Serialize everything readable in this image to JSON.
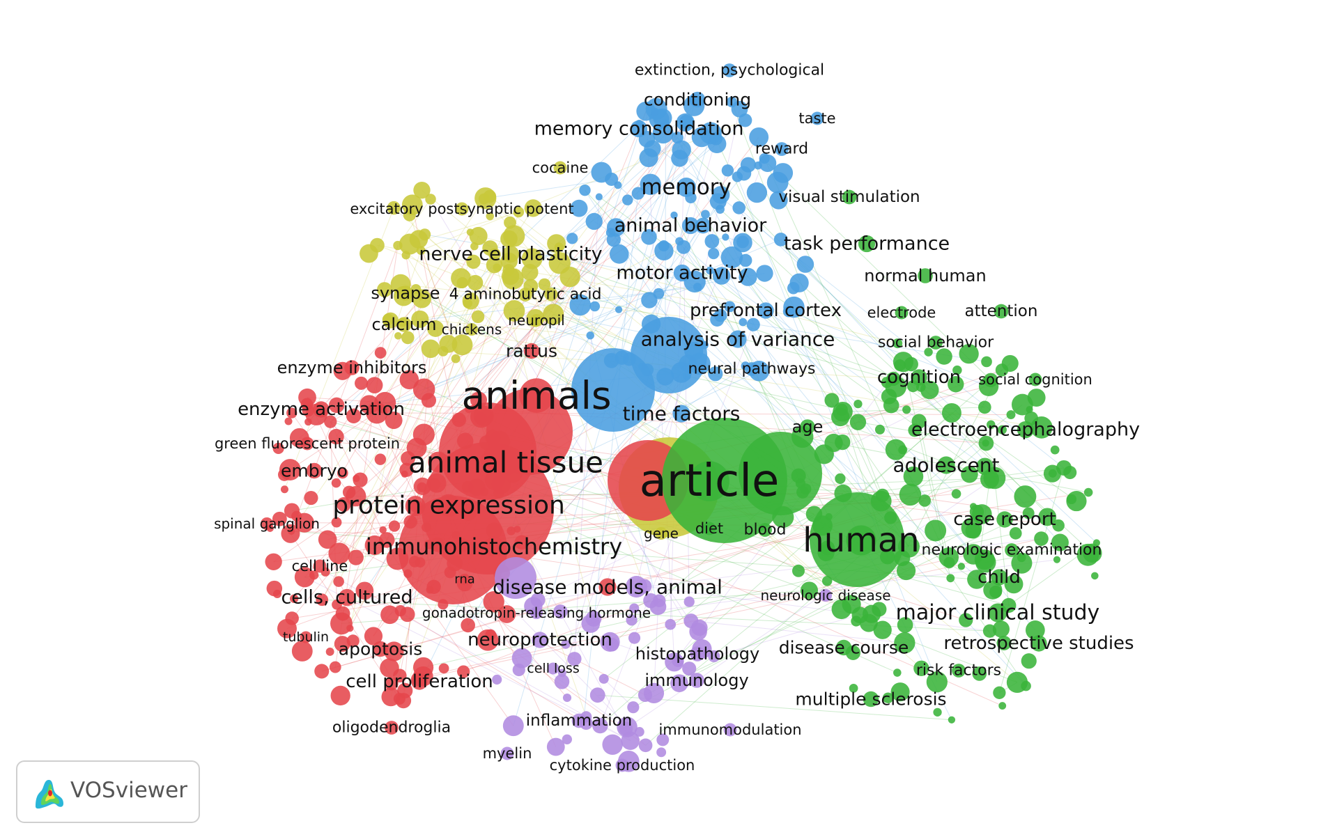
{
  "app": {
    "logo_text": "VOSviewer"
  },
  "clusters": {
    "red": "#e5474c",
    "green": "#3ab43a",
    "blue": "#4a9ee0",
    "yellow": "#c8c83a",
    "purple": "#b18be0"
  },
  "terms": [
    {
      "text": "extinction, psychological",
      "cluster": "blue"
    },
    {
      "text": "conditioning",
      "cluster": "blue"
    },
    {
      "text": "taste",
      "cluster": "blue"
    },
    {
      "text": "memory consolidation",
      "cluster": "blue"
    },
    {
      "text": "reward",
      "cluster": "blue"
    },
    {
      "text": "cocaine",
      "cluster": "yellow"
    },
    {
      "text": "memory",
      "cluster": "blue"
    },
    {
      "text": "visual stimulation",
      "cluster": "green"
    },
    {
      "text": "excitatory postsynaptic potent",
      "cluster": "yellow"
    },
    {
      "text": "animal behavior",
      "cluster": "blue"
    },
    {
      "text": "task performance",
      "cluster": "green"
    },
    {
      "text": "nerve cell plasticity",
      "cluster": "yellow"
    },
    {
      "text": "motor activity",
      "cluster": "blue"
    },
    {
      "text": "normal human",
      "cluster": "green"
    },
    {
      "text": "synapse",
      "cluster": "yellow"
    },
    {
      "text": "4 aminobutyric acid",
      "cluster": "yellow"
    },
    {
      "text": "prefrontal cortex",
      "cluster": "blue"
    },
    {
      "text": "electrode",
      "cluster": "green"
    },
    {
      "text": "attention",
      "cluster": "green"
    },
    {
      "text": "calcium",
      "cluster": "yellow"
    },
    {
      "text": "chickens",
      "cluster": "yellow"
    },
    {
      "text": "neuropil",
      "cluster": "yellow"
    },
    {
      "text": "analysis of variance",
      "cluster": "blue"
    },
    {
      "text": "social behavior",
      "cluster": "green"
    },
    {
      "text": "rattus",
      "cluster": "red"
    },
    {
      "text": "enzyme inhibitors",
      "cluster": "red"
    },
    {
      "text": "neural pathways",
      "cluster": "blue"
    },
    {
      "text": "cognition",
      "cluster": "green"
    },
    {
      "text": "social cognition",
      "cluster": "green"
    },
    {
      "text": "animals",
      "cluster": "red"
    },
    {
      "text": "enzyme activation",
      "cluster": "red"
    },
    {
      "text": "time factors",
      "cluster": "blue"
    },
    {
      "text": "age",
      "cluster": "green"
    },
    {
      "text": "electroencephalography",
      "cluster": "green"
    },
    {
      "text": "green fluorescent protein",
      "cluster": "red"
    },
    {
      "text": "animal tissue",
      "cluster": "red"
    },
    {
      "text": "embryo",
      "cluster": "red"
    },
    {
      "text": "article",
      "cluster": "green"
    },
    {
      "text": "adolescent",
      "cluster": "green"
    },
    {
      "text": "protein expression",
      "cluster": "red"
    },
    {
      "text": "case report",
      "cluster": "green"
    },
    {
      "text": "spinal ganglion",
      "cluster": "red"
    },
    {
      "text": "diet",
      "cluster": "green"
    },
    {
      "text": "blood",
      "cluster": "green"
    },
    {
      "text": "gene",
      "cluster": "yellow"
    },
    {
      "text": "human",
      "cluster": "green"
    },
    {
      "text": "immunohistochemistry",
      "cluster": "red"
    },
    {
      "text": "neurologic examination",
      "cluster": "green"
    },
    {
      "text": "cell line",
      "cluster": "red"
    },
    {
      "text": "child",
      "cluster": "green"
    },
    {
      "text": "rna",
      "cluster": "red"
    },
    {
      "text": "disease models, animal",
      "cluster": "red"
    },
    {
      "text": "neurologic disease",
      "cluster": "purple"
    },
    {
      "text": "cells, cultured",
      "cluster": "red"
    },
    {
      "text": "gonadotropin-releasing hormone",
      "cluster": "purple"
    },
    {
      "text": "major clinical study",
      "cluster": "green"
    },
    {
      "text": "tubulin",
      "cluster": "red"
    },
    {
      "text": "neuroprotection",
      "cluster": "purple"
    },
    {
      "text": "retrospective studies",
      "cluster": "green"
    },
    {
      "text": "apoptosis",
      "cluster": "red"
    },
    {
      "text": "histopathology",
      "cluster": "purple"
    },
    {
      "text": "disease course",
      "cluster": "green"
    },
    {
      "text": "cell loss",
      "cluster": "purple"
    },
    {
      "text": "risk factors",
      "cluster": "green"
    },
    {
      "text": "immunology",
      "cluster": "purple"
    },
    {
      "text": "cell proliferation",
      "cluster": "red"
    },
    {
      "text": "multiple sclerosis",
      "cluster": "green"
    },
    {
      "text": "inflammation",
      "cluster": "purple"
    },
    {
      "text": "oligodendroglia",
      "cluster": "red"
    },
    {
      "text": "immunomodulation",
      "cluster": "purple"
    },
    {
      "text": "myelin",
      "cluster": "purple"
    },
    {
      "text": "cytokine production",
      "cluster": "purple"
    }
  ]
}
